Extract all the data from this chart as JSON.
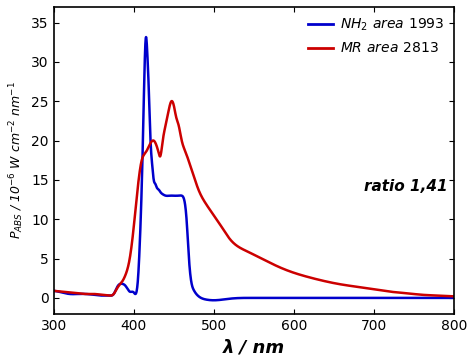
{
  "xlim": [
    300,
    800
  ],
  "ylim": [
    -2,
    37
  ],
  "yticks": [
    0,
    5,
    10,
    15,
    20,
    25,
    30,
    35
  ],
  "xticks": [
    300,
    400,
    500,
    600,
    700,
    800
  ],
  "xlabel": "λ / nm",
  "blue_color": "#0000cc",
  "red_color": "#cc0000",
  "figsize": [
    4.74,
    3.63
  ],
  "dpi": 100,
  "blue_x": [
    300,
    310,
    320,
    330,
    340,
    350,
    360,
    370,
    375,
    380,
    385,
    390,
    395,
    400,
    405,
    408,
    411,
    413,
    415,
    417,
    419,
    421,
    423,
    425,
    427,
    429,
    431,
    433,
    436,
    440,
    445,
    450,
    455,
    460,
    463,
    466,
    469,
    472,
    475,
    480,
    490,
    500,
    520,
    550,
    600,
    650,
    700,
    750,
    800
  ],
  "blue_y": [
    0.9,
    0.7,
    0.5,
    0.5,
    0.5,
    0.4,
    0.3,
    0.3,
    0.5,
    1.5,
    1.8,
    1.5,
    0.8,
    0.7,
    2.0,
    8.0,
    18.0,
    27.0,
    33.0,
    31.0,
    26.0,
    20.0,
    17.0,
    15.0,
    14.5,
    14.0,
    13.8,
    13.5,
    13.2,
    13.0,
    13.0,
    13.0,
    13.0,
    13.0,
    12.5,
    10.0,
    5.0,
    2.0,
    1.0,
    0.3,
    -0.2,
    -0.3,
    -0.1,
    0.0,
    0.0,
    0.0,
    0.0,
    0.0,
    0.0
  ],
  "red_x": [
    300,
    310,
    320,
    330,
    340,
    350,
    360,
    370,
    375,
    378,
    381,
    385,
    390,
    395,
    400,
    405,
    410,
    415,
    420,
    425,
    428,
    431,
    433,
    435,
    437,
    440,
    443,
    447,
    450,
    453,
    456,
    460,
    465,
    470,
    475,
    480,
    490,
    500,
    510,
    520,
    540,
    560,
    580,
    600,
    620,
    640,
    660,
    680,
    700,
    720,
    740,
    760,
    780,
    800
  ],
  "red_y": [
    0.9,
    0.8,
    0.7,
    0.6,
    0.5,
    0.5,
    0.4,
    0.3,
    0.5,
    1.0,
    1.5,
    2.0,
    3.0,
    5.0,
    9.0,
    14.0,
    17.5,
    18.5,
    19.5,
    20.0,
    19.5,
    18.5,
    18.0,
    19.0,
    20.5,
    22.0,
    23.5,
    25.0,
    24.5,
    23.0,
    22.0,
    20.0,
    18.5,
    17.0,
    15.5,
    14.0,
    12.0,
    10.5,
    9.0,
    7.5,
    6.0,
    5.0,
    4.0,
    3.2,
    2.6,
    2.1,
    1.7,
    1.4,
    1.1,
    0.8,
    0.6,
    0.4,
    0.3,
    0.2
  ]
}
